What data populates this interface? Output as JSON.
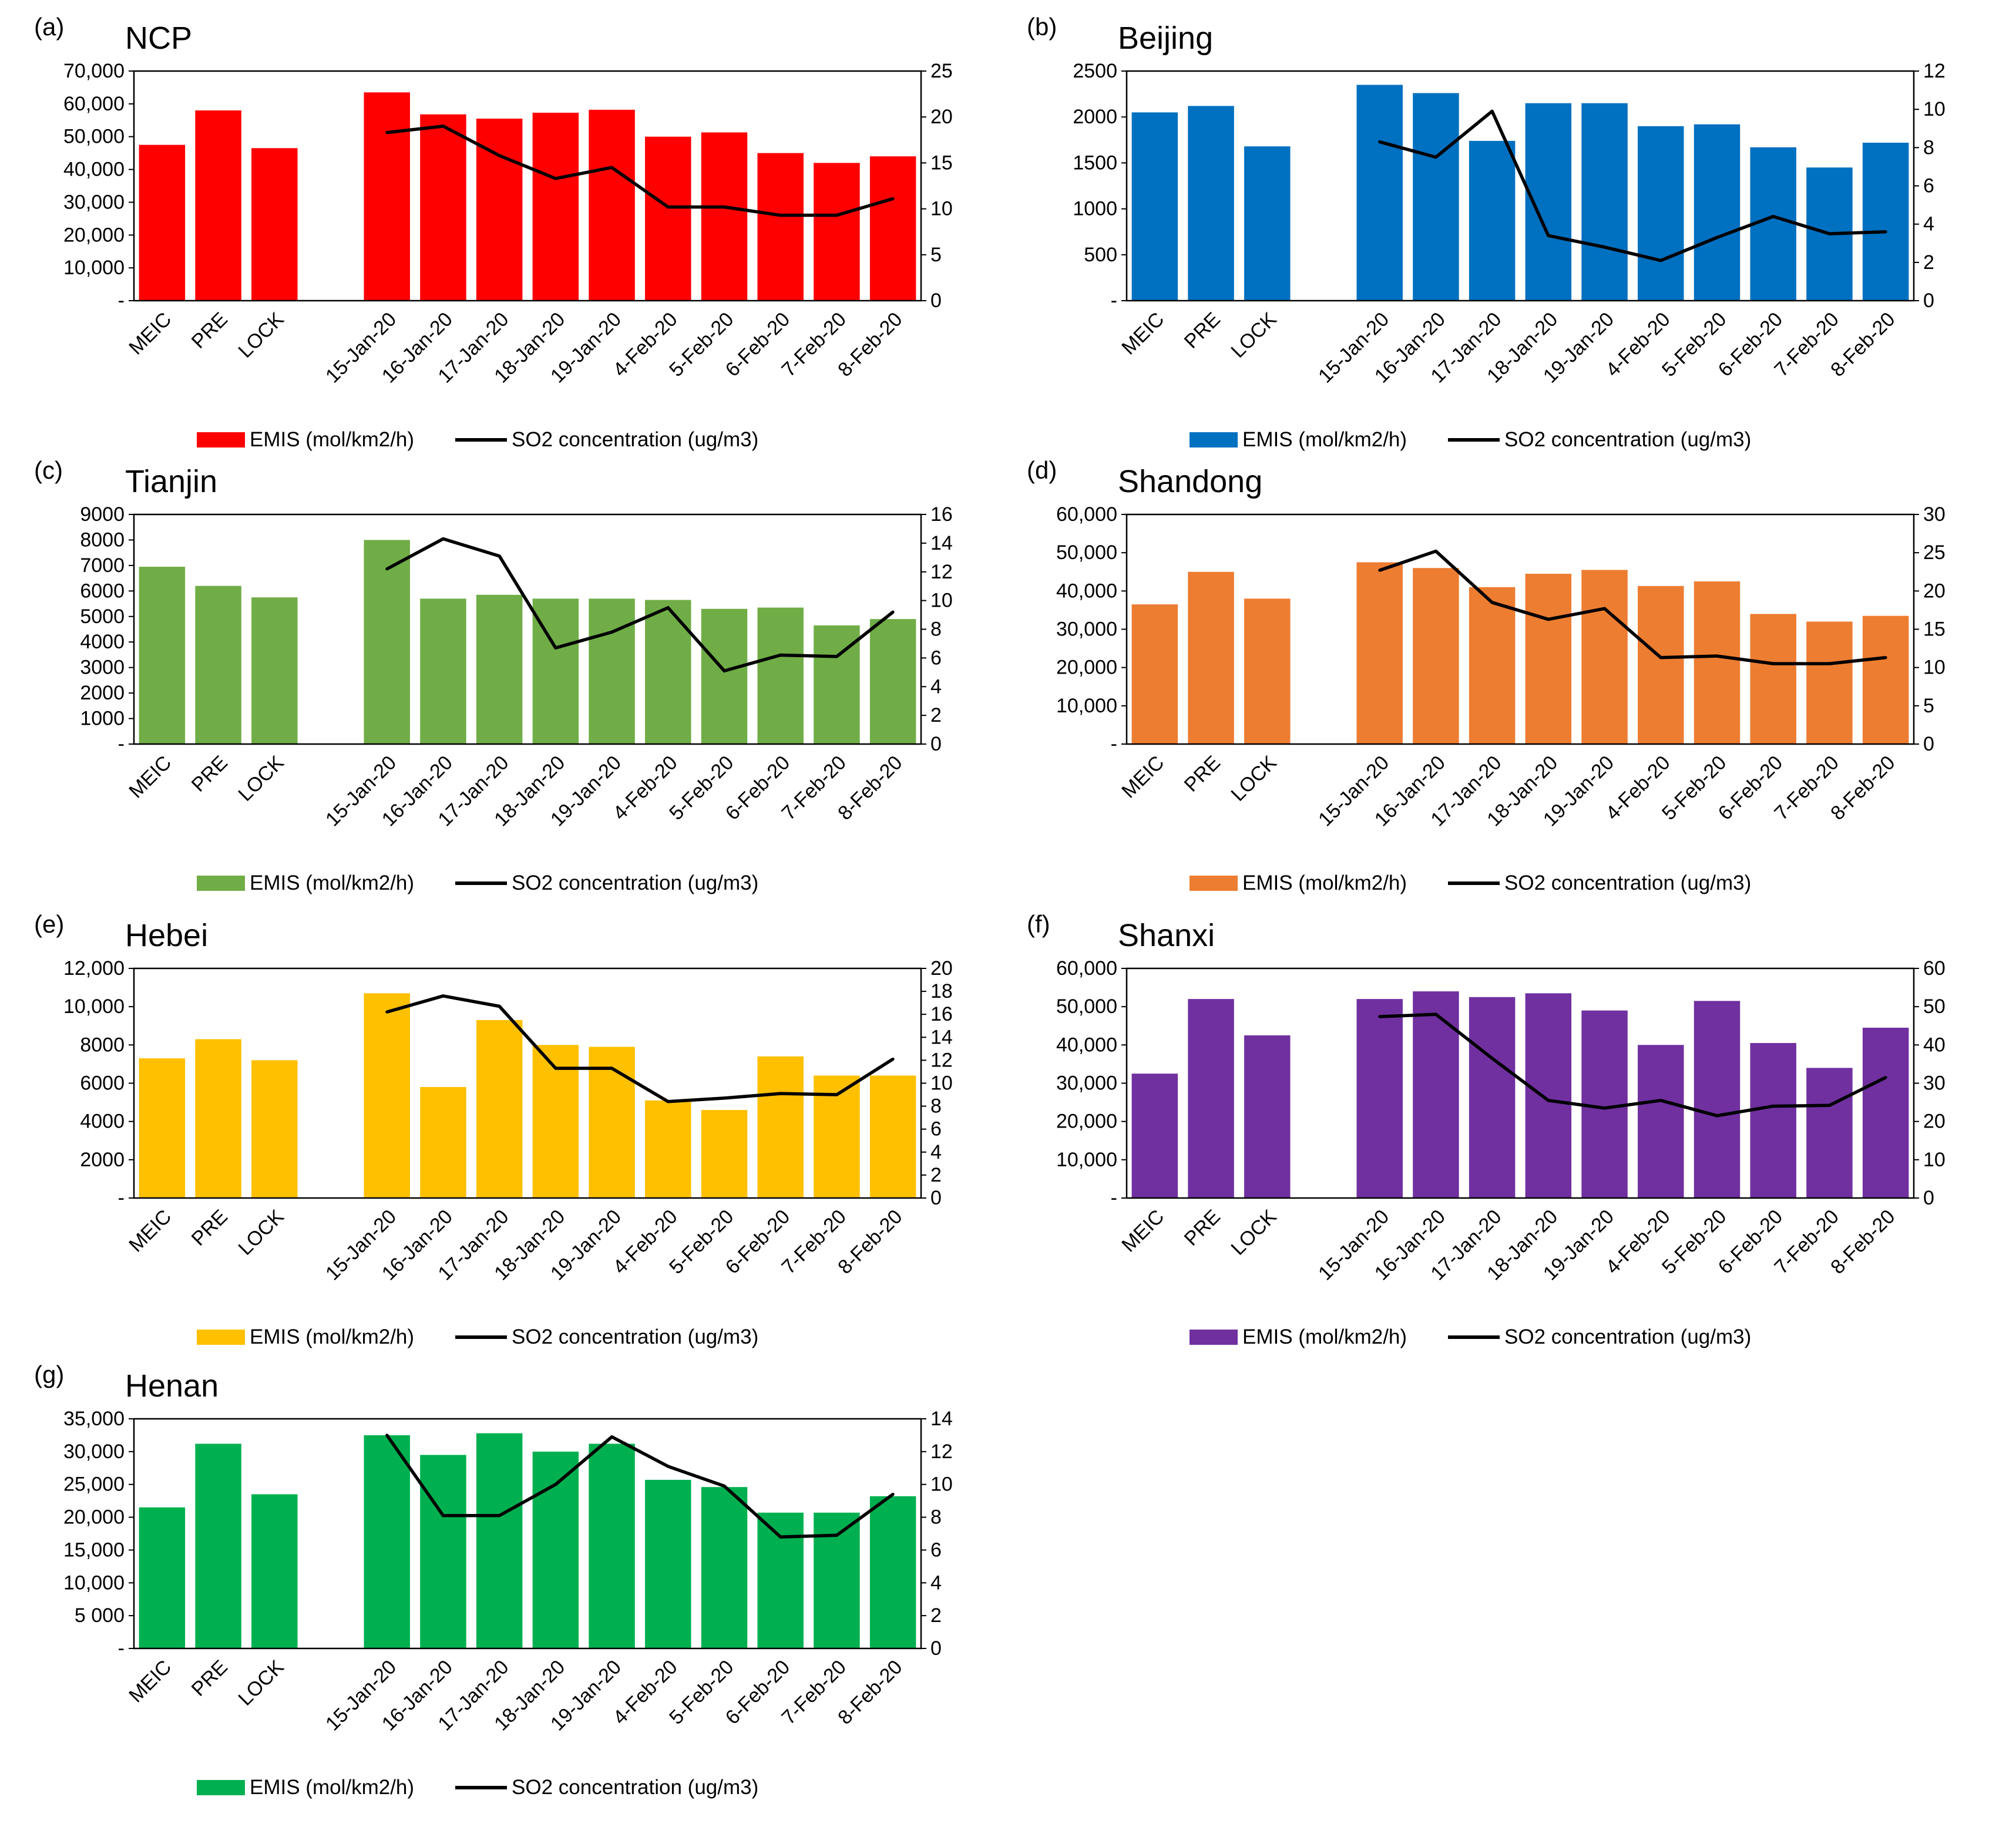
{
  "chart_data": [
    {
      "type": "bar",
      "panel_label": "(a)",
      "title": "NCP",
      "categories": [
        "MEIC",
        "PRE",
        "LOCK",
        null,
        "15-Jan-20",
        "16-Jan-20",
        "17-Jan-20",
        "18-Jan-20",
        "19-Jan-20",
        "4-Feb-20",
        "5-Feb-20",
        "6-Feb-20",
        "7-Feb-20",
        "8-Feb-20"
      ],
      "series": [
        {
          "name": "EMIS (mol/km2/h)",
          "type": "bar",
          "axis": "left",
          "color": "#FF0000",
          "values": [
            47500,
            58000,
            46500,
            null,
            63500,
            56800,
            55500,
            57300,
            58200,
            50000,
            51300,
            45000,
            42000,
            44000
          ]
        },
        {
          "name": "SO2 concentration (ug/m3)",
          "type": "line",
          "axis": "right",
          "color": "#000000",
          "values": [
            null,
            null,
            null,
            null,
            18.3,
            19.0,
            15.8,
            13.3,
            14.5,
            10.2,
            10.2,
            9.3,
            9.3,
            11.1
          ]
        }
      ],
      "ylim_left": [
        0,
        70000
      ],
      "yticks_left": [
        "-",
        "10,000",
        "20,000",
        "30,000",
        "40,000",
        "50,000",
        "60,000",
        "70,000"
      ],
      "ylim_right": [
        0,
        25
      ],
      "yticks_right": [
        "0",
        "5",
        "10",
        "15",
        "20",
        "25"
      ],
      "grid": false
    },
    {
      "type": "bar",
      "panel_label": "(b)",
      "title": "Beijing",
      "categories": [
        "MEIC",
        "PRE",
        "LOCK",
        null,
        "15-Jan-20",
        "16-Jan-20",
        "17-Jan-20",
        "18-Jan-20",
        "19-Jan-20",
        "4-Feb-20",
        "5-Feb-20",
        "6-Feb-20",
        "7-Feb-20",
        "8-Feb-20"
      ],
      "series": [
        {
          "name": "EMIS (mol/km2/h)",
          "type": "bar",
          "axis": "left",
          "color": "#0070C0",
          "values": [
            2050,
            2120,
            1680,
            null,
            2350,
            2260,
            1740,
            2150,
            2150,
            1900,
            1920,
            1670,
            1450,
            1720
          ]
        },
        {
          "name": "SO2 concentration (ug/m3)",
          "type": "line",
          "axis": "right",
          "color": "#000000",
          "values": [
            null,
            null,
            null,
            null,
            8.3,
            7.5,
            9.9,
            3.4,
            2.8,
            2.1,
            3.3,
            4.4,
            3.5,
            3.6
          ]
        }
      ],
      "ylim_left": [
        0,
        2500
      ],
      "yticks_left": [
        "-",
        "500",
        "1000",
        "1500",
        "2000",
        "2500"
      ],
      "ylim_right": [
        0,
        12
      ],
      "yticks_right": [
        "0",
        "2",
        "4",
        "6",
        "8",
        "10",
        "12"
      ],
      "grid": false
    },
    {
      "type": "bar",
      "panel_label": "(c)",
      "title": "Tianjin",
      "categories": [
        "MEIC",
        "PRE",
        "LOCK",
        null,
        "15-Jan-20",
        "16-Jan-20",
        "17-Jan-20",
        "18-Jan-20",
        "19-Jan-20",
        "4-Feb-20",
        "5-Feb-20",
        "6-Feb-20",
        "7-Feb-20",
        "8-Feb-20"
      ],
      "series": [
        {
          "name": "EMIS (mol/km2/h)",
          "type": "bar",
          "axis": "left",
          "color": "#70AD47",
          "values": [
            6950,
            6200,
            5750,
            null,
            8000,
            5700,
            5850,
            5700,
            5700,
            5650,
            5300,
            5350,
            4650,
            4900
          ]
        },
        {
          "name": "SO2 concentration (ug/m3)",
          "type": "line",
          "axis": "right",
          "color": "#000000",
          "values": [
            null,
            null,
            null,
            null,
            12.2,
            14.3,
            13.1,
            6.7,
            7.8,
            9.5,
            5.1,
            6.2,
            6.1,
            9.2
          ]
        }
      ],
      "ylim_left": [
        0,
        9000
      ],
      "yticks_left": [
        "-",
        "1000",
        "2000",
        "3000",
        "4000",
        "5000",
        "6000",
        "7000",
        "8000",
        "9000"
      ],
      "ylim_right": [
        0,
        16
      ],
      "yticks_right": [
        "0",
        "2",
        "4",
        "6",
        "8",
        "10",
        "12",
        "14",
        "16"
      ],
      "grid": false
    },
    {
      "type": "bar",
      "panel_label": "(d)",
      "title": "Shandong",
      "categories": [
        "MEIC",
        "PRE",
        "LOCK",
        null,
        "15-Jan-20",
        "16-Jan-20",
        "17-Jan-20",
        "18-Jan-20",
        "19-Jan-20",
        "4-Feb-20",
        "5-Feb-20",
        "6-Feb-20",
        "7-Feb-20",
        "8-Feb-20"
      ],
      "series": [
        {
          "name": "EMIS (mol/km2/h)",
          "type": "bar",
          "axis": "left",
          "color": "#ED7D31",
          "values": [
            36500,
            45000,
            38000,
            null,
            47500,
            46000,
            41000,
            44500,
            45500,
            41300,
            42500,
            34000,
            32000,
            33500
          ]
        },
        {
          "name": "SO2 concentration (ug/m3)",
          "type": "line",
          "axis": "right",
          "color": "#000000",
          "values": [
            null,
            null,
            null,
            null,
            22.7,
            25.2,
            18.5,
            16.3,
            17.7,
            11.3,
            11.5,
            10.5,
            10.5,
            11.3
          ]
        }
      ],
      "ylim_left": [
        0,
        60000
      ],
      "yticks_left": [
        "-",
        "10,000",
        "20,000",
        "30,000",
        "40,000",
        "50,000",
        "60,000"
      ],
      "ylim_right": [
        0,
        30
      ],
      "yticks_right": [
        "0",
        "5",
        "10",
        "15",
        "20",
        "25",
        "30"
      ],
      "grid": false
    },
    {
      "type": "bar",
      "panel_label": "(e)",
      "title": "Hebei",
      "categories": [
        "MEIC",
        "PRE",
        "LOCK",
        null,
        "15-Jan-20",
        "16-Jan-20",
        "17-Jan-20",
        "18-Jan-20",
        "19-Jan-20",
        "4-Feb-20",
        "5-Feb-20",
        "6-Feb-20",
        "7-Feb-20",
        "8-Feb-20"
      ],
      "series": [
        {
          "name": "EMIS (mol/km2/h)",
          "type": "bar",
          "axis": "left",
          "color": "#FFC000",
          "values": [
            7300,
            8300,
            7200,
            null,
            10700,
            5800,
            9300,
            8000,
            7900,
            5100,
            4600,
            7400,
            6400,
            6400
          ]
        },
        {
          "name": "SO2 concentration (ug/m3)",
          "type": "line",
          "axis": "right",
          "color": "#000000",
          "values": [
            null,
            null,
            null,
            null,
            16.2,
            17.6,
            16.7,
            11.3,
            11.3,
            8.4,
            8.7,
            9.1,
            9.0,
            12.1
          ]
        }
      ],
      "ylim_left": [
        0,
        12000
      ],
      "yticks_left": [
        "-",
        "2000",
        "4000",
        "6000",
        "8000",
        "10,000",
        "12,000"
      ],
      "ylim_right": [
        0,
        20
      ],
      "yticks_right": [
        "0",
        "2",
        "4",
        "6",
        "8",
        "10",
        "12",
        "14",
        "16",
        "18",
        "20"
      ],
      "grid": false
    },
    {
      "type": "bar",
      "panel_label": "(f)",
      "title": "Shanxi",
      "categories": [
        "MEIC",
        "PRE",
        "LOCK",
        null,
        "15-Jan-20",
        "16-Jan-20",
        "17-Jan-20",
        "18-Jan-20",
        "19-Jan-20",
        "4-Feb-20",
        "5-Feb-20",
        "6-Feb-20",
        "7-Feb-20",
        "8-Feb-20"
      ],
      "series": [
        {
          "name": "EMIS (mol/km2/h)",
          "type": "bar",
          "axis": "left",
          "color": "#7030A0",
          "values": [
            32500,
            52000,
            42500,
            null,
            52000,
            54000,
            52500,
            53500,
            49000,
            40000,
            51500,
            40500,
            34000,
            44500
          ]
        },
        {
          "name": "SO2 concentration (ug/m3)",
          "type": "line",
          "axis": "right",
          "color": "#000000",
          "values": [
            null,
            null,
            null,
            null,
            47.4,
            48.0,
            36.5,
            25.5,
            23.5,
            25.5,
            21.5,
            24.0,
            24.2,
            31.5
          ]
        }
      ],
      "ylim_left": [
        0,
        60000
      ],
      "yticks_left": [
        "-",
        "10,000",
        "20,000",
        "30,000",
        "40,000",
        "50,000",
        "60,000"
      ],
      "ylim_right": [
        0,
        60
      ],
      "yticks_right": [
        "0",
        "10",
        "20",
        "30",
        "40",
        "50",
        "60"
      ],
      "grid": false
    },
    {
      "type": "bar",
      "panel_label": "(g)",
      "title": "Henan",
      "categories": [
        "MEIC",
        "PRE",
        "LOCK",
        null,
        "15-Jan-20",
        "16-Jan-20",
        "17-Jan-20",
        "18-Jan-20",
        "19-Jan-20",
        "4-Feb-20",
        "5-Feb-20",
        "6-Feb-20",
        "7-Feb-20",
        "8-Feb-20"
      ],
      "series": [
        {
          "name": "EMIS (mol/km2/h)",
          "type": "bar",
          "axis": "left",
          "color": "#00B050",
          "values": [
            21500,
            31200,
            23500,
            null,
            32500,
            29500,
            32800,
            30000,
            31200,
            25700,
            24600,
            20700,
            20700,
            23200
          ]
        },
        {
          "name": "SO2 concentration (ug/m3)",
          "type": "line",
          "axis": "right",
          "color": "#000000",
          "values": [
            null,
            null,
            null,
            null,
            13.0,
            8.1,
            8.1,
            10.0,
            12.9,
            11.1,
            9.9,
            6.8,
            6.9,
            9.4
          ]
        }
      ],
      "ylim_left": [
        0,
        35000
      ],
      "yticks_left": [
        "-",
        "5 000",
        "10,000",
        "15,000",
        "20,000",
        "25,000",
        "30,000",
        "35,000"
      ],
      "ylim_right": [
        0,
        14
      ],
      "yticks_right": [
        "0",
        "2",
        "4",
        "6",
        "8",
        "10",
        "12",
        "14"
      ],
      "grid": false
    }
  ]
}
